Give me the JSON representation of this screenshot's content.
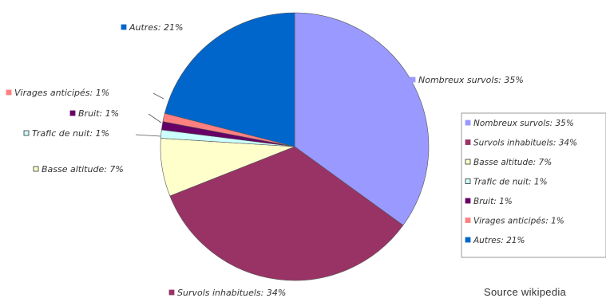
{
  "chart_data": {
    "type": "pie",
    "title": "",
    "series": [
      {
        "slices": [
          {
            "label": "Nombreux survols",
            "value": 35,
            "color": "#9999ff",
            "display": "Nombreux survols: 35%"
          },
          {
            "label": "Survols inhabituels",
            "value": 34,
            "color": "#993366",
            "display": "Survols inhabituels: 34%"
          },
          {
            "label": "Basse altitude",
            "value": 7,
            "color": "#ffffcc",
            "display": "Basse altitude: 7%"
          },
          {
            "label": "Trafic de nuit",
            "value": 1,
            "color": "#ccffff",
            "display": "Trafic de nuit: 1%"
          },
          {
            "label": "Bruit",
            "value": 1,
            "color": "#660066",
            "display": "Bruit: 1%"
          },
          {
            "label": "Virages anticipés",
            "value": 1,
            "color": "#ff8080",
            "display": "Virages anticipés: 1%"
          },
          {
            "label": "Autres",
            "value": 21,
            "color": "#0066cc",
            "display": "Autres: 21%"
          }
        ]
      }
    ],
    "legend": {
      "placement": "right",
      "entries": [
        "Nombreux survols: 35%",
        "Survols inhabituels: 34%",
        "Basse altitude: 7%",
        "Trafic de nuit: 1%",
        "Bruit: 1%",
        "Virages anticipés: 1%",
        "Autres: 21%"
      ]
    }
  },
  "source": "Source wikipedia"
}
